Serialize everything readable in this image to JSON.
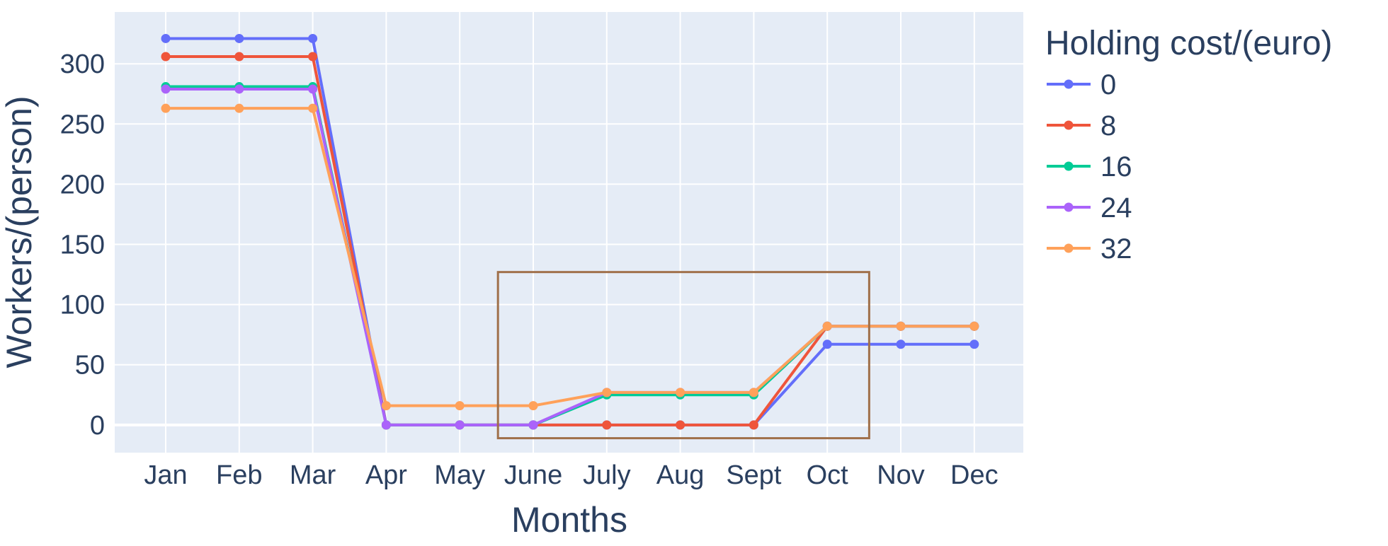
{
  "chart_data": {
    "type": "line",
    "xlabel": "Months",
    "ylabel": "Workers/(person)",
    "categories": [
      "Jan",
      "Feb",
      "Mar",
      "Apr",
      "May",
      "June",
      "July",
      "Aug",
      "Sept",
      "Oct",
      "Nov",
      "Dec"
    ],
    "ylim": [
      -23,
      343
    ],
    "yticks": [
      0,
      50,
      100,
      150,
      200,
      250,
      300
    ],
    "grid": true,
    "legend": {
      "title": "Holding cost/(euro)",
      "placement": "right"
    },
    "series": [
      {
        "name": "0",
        "color": "#636efa",
        "values": [
          321,
          321,
          321,
          0,
          0,
          0,
          0,
          0,
          0,
          67,
          67,
          67
        ]
      },
      {
        "name": "8",
        "color": "#ef553b",
        "values": [
          306,
          306,
          306,
          0,
          0,
          0,
          0,
          0,
          0,
          82,
          82,
          82
        ]
      },
      {
        "name": "16",
        "color": "#00cc96",
        "values": [
          281,
          281,
          281,
          0,
          0,
          0,
          25,
          25,
          25,
          82,
          82,
          82
        ]
      },
      {
        "name": "24",
        "color": "#ab63fa",
        "values": [
          279,
          279,
          279,
          0,
          0,
          0,
          27,
          27,
          27,
          82,
          82,
          82
        ]
      },
      {
        "name": "32",
        "color": "#ffa15a",
        "values": [
          263,
          263,
          263,
          16,
          16,
          16,
          27,
          27,
          27,
          82,
          82,
          82
        ]
      }
    ],
    "annotations": [
      {
        "type": "rectangle",
        "x_range": [
          "May",
          "Oct"
        ],
        "x_offset": [
          0.52,
          0.57
        ],
        "y_range": [
          -11,
          127
        ],
        "color": "#a0704a"
      }
    ]
  }
}
